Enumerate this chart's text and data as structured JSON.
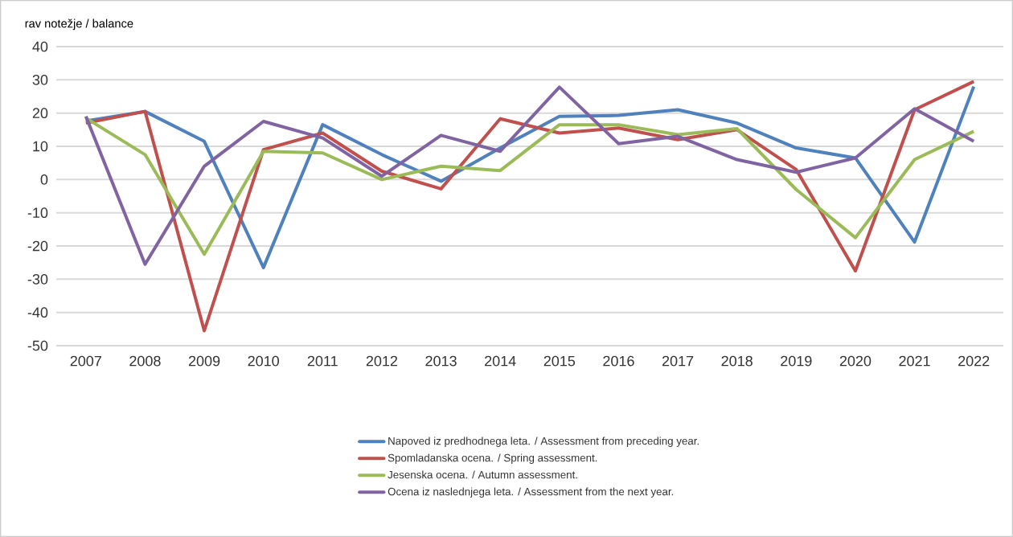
{
  "chart_data": {
    "type": "line",
    "ylabel": "rav notežje / balance",
    "categories": [
      "2007",
      "2008",
      "2009",
      "2010",
      "2011",
      "2012",
      "2013",
      "2014",
      "2015",
      "2016",
      "2017",
      "2018",
      "2019",
      "2020",
      "2021",
      "2022"
    ],
    "series": [
      {
        "name": "Napoved iz predhodnega leta. / Assessment from preceding year.",
        "color": "#4f81bd",
        "values": [
          17.6,
          20.5,
          11.5,
          -26.5,
          16.5,
          7.5,
          -0.5,
          9.5,
          19,
          19.3,
          21,
          17,
          9.5,
          6.5,
          -18.8,
          28
        ]
      },
      {
        "name": "Spomladanska ocena. / Spring assessment.",
        "color": "#c0504d",
        "values": [
          17,
          20.5,
          -45.5,
          9,
          14,
          2.5,
          -2.8,
          18.3,
          14,
          15.5,
          12,
          15,
          3,
          -27.5,
          21,
          29.5
        ]
      },
      {
        "name": "Jesenska ocena.  / Autumn assessment.",
        "color": "#9bbb59",
        "values": [
          18.5,
          7.5,
          -22.5,
          8.5,
          8,
          0,
          4,
          2.7,
          16.5,
          16.5,
          13.5,
          15.3,
          -3,
          -17.5,
          6,
          14.5
        ]
      },
      {
        "name": "Ocena iz naslednjega leta. / Assessment from the next year.",
        "color": "#8064a2",
        "values": [
          19,
          -25.5,
          4,
          17.5,
          12.5,
          1,
          13.3,
          8.5,
          27.8,
          10.8,
          13,
          6,
          2.2,
          6.5,
          21.3,
          11.5
        ]
      }
    ],
    "ylim": [
      -50,
      40
    ],
    "yticks": [
      -50,
      -40,
      -30,
      -20,
      -10,
      0,
      10,
      20,
      30,
      40
    ],
    "grid": "y",
    "legend": "bottom",
    "marker": "none",
    "line_style": "solid"
  }
}
